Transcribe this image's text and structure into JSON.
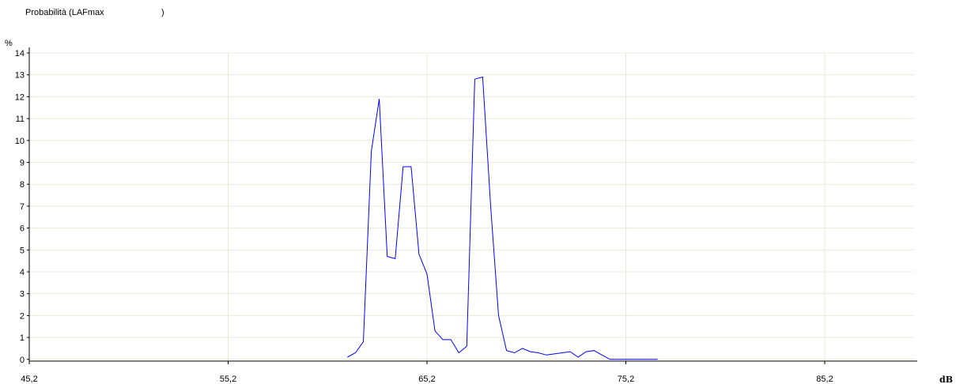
{
  "header": {
    "title": "Probabilità  (LAFmax",
    "title_close": ")"
  },
  "chart_data": {
    "type": "line",
    "title": "Probabilità  (LAFmax            )",
    "ylabel": "%",
    "xlabel": "dB",
    "xlim": [
      45.2,
      90.2
    ],
    "ylim": [
      0,
      14
    ],
    "x_tick_labels": [
      "45,2",
      "55,2",
      "65,2",
      "75,2",
      "85,2"
    ],
    "x_ticks": [
      45.2,
      55.2,
      65.2,
      75.2,
      85.2
    ],
    "y_tick_labels": [
      "14",
      "13",
      "12",
      "11",
      "10",
      "9",
      "8",
      "7",
      "6",
      "5",
      "4",
      "3",
      "2",
      "1",
      "0"
    ],
    "y_ticks": [
      14,
      13,
      12,
      11,
      10,
      9,
      8,
      7,
      6,
      5,
      4,
      3,
      2,
      1,
      0
    ],
    "grid": true,
    "line_color": "#0000ff",
    "grid_color": "#ece9d8",
    "x": [
      61.2,
      61.6,
      62.0,
      62.4,
      62.8,
      63.2,
      63.6,
      64.0,
      64.4,
      64.8,
      65.2,
      65.6,
      66.0,
      66.4,
      66.8,
      67.2,
      67.6,
      68.0,
      68.4,
      68.8,
      69.2,
      69.6,
      70.0,
      70.4,
      70.8,
      71.2,
      71.6,
      72.0,
      72.4,
      72.8,
      73.2,
      73.6,
      74.0,
      74.4,
      74.8,
      75.2,
      75.6,
      76.0,
      76.4,
      76.8
    ],
    "y": [
      0.1,
      0.3,
      0.8,
      9.5,
      11.9,
      4.7,
      4.6,
      8.8,
      8.8,
      4.8,
      3.9,
      1.3,
      0.9,
      0.9,
      0.3,
      0.6,
      12.8,
      12.9,
      7.0,
      2.0,
      0.4,
      0.3,
      0.5,
      0.35,
      0.3,
      0.2,
      0.25,
      0.3,
      0.35,
      0.1,
      0.35,
      0.4,
      0.2,
      0.0,
      0.0,
      0.0,
      0.0,
      0.0,
      0.0,
      0.0
    ]
  }
}
